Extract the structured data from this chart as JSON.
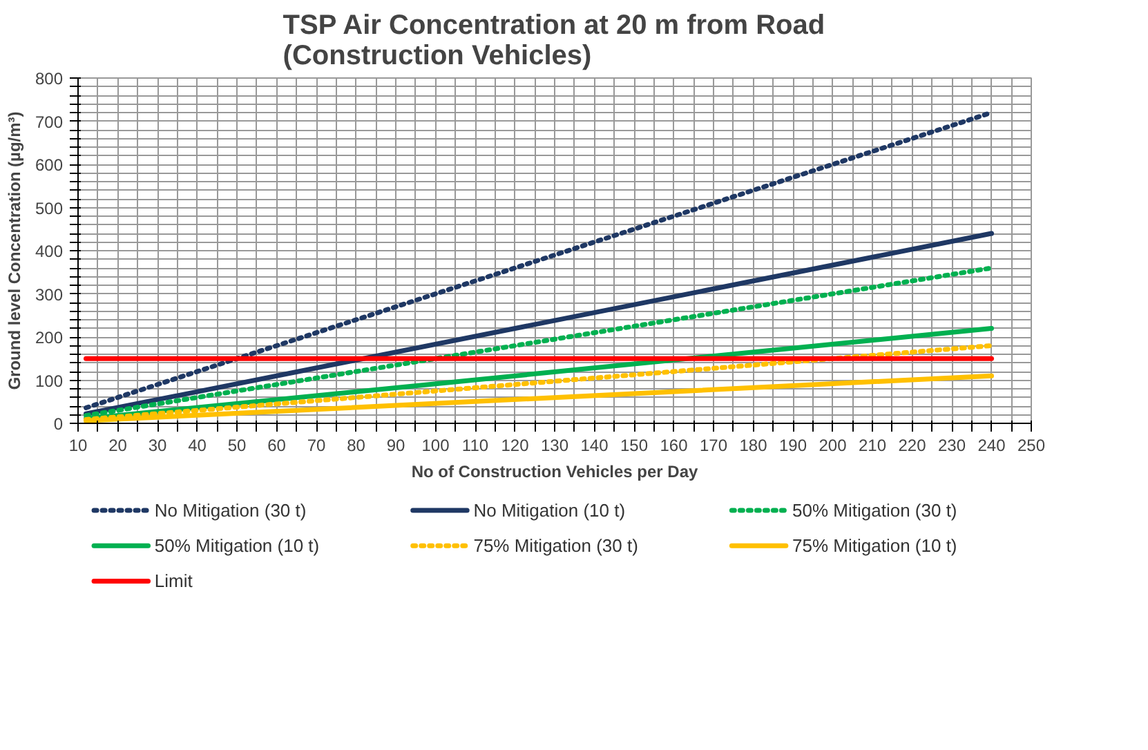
{
  "chart_data": {
    "type": "line",
    "title": "TSP Air Concentration at 20 m from Road\n(Construction Vehicles)",
    "xlabel": "No of Construction Vehicles per Day",
    "ylabel": "Ground level Concentration (µg/m³)",
    "x": [
      12,
      240
    ],
    "series": [
      {
        "name": "No Mitigation (30 t)",
        "color": "#1f3864",
        "line_style": "dotted",
        "values": [
          36,
          720
        ]
      },
      {
        "name": "No Mitigation (10 t)",
        "color": "#1f3864",
        "line_style": "solid",
        "values": [
          22,
          440
        ]
      },
      {
        "name": "50% Mitigation (30 t)",
        "color": "#00b050",
        "line_style": "dotted",
        "values": [
          18,
          360
        ]
      },
      {
        "name": "50% Mitigation (10 t)",
        "color": "#00b050",
        "line_style": "solid",
        "values": [
          11,
          220
        ]
      },
      {
        "name": "75% Mitigation (30 t)",
        "color": "#ffc000",
        "line_style": "dotted",
        "values": [
          9,
          180
        ]
      },
      {
        "name": "75% Mitigation (10 t)",
        "color": "#ffc000",
        "line_style": "solid",
        "values": [
          6,
          110
        ]
      },
      {
        "name": "Limit",
        "color": "#ff0000",
        "line_style": "solid",
        "values": [
          150,
          150
        ]
      }
    ],
    "xlim": [
      10,
      250
    ],
    "xticks": [
      10,
      {
        "value": 15,
        "label": null
      },
      20,
      {
        "value": 25,
        "label": null
      },
      30,
      {
        "value": 35,
        "label": null
      },
      40,
      {
        "value": 45,
        "label": null
      },
      50,
      {
        "value": 55,
        "label": null
      },
      60,
      {
        "value": 65,
        "label": null
      },
      70,
      {
        "value": 75,
        "label": null
      },
      80,
      {
        "value": 85,
        "label": null
      },
      90,
      {
        "value": 95,
        "label": null
      },
      100,
      {
        "value": 105,
        "label": null
      },
      110,
      {
        "value": 115,
        "label": null
      },
      120,
      {
        "value": 125,
        "label": null
      },
      130,
      {
        "value": 135,
        "label": null
      },
      140,
      {
        "value": 145,
        "label": null
      },
      150,
      {
        "value": 155,
        "label": null
      },
      160,
      {
        "value": 165,
        "label": null
      },
      170,
      {
        "value": 175,
        "label": null
      },
      180,
      {
        "value": 185,
        "label": null
      },
      190,
      {
        "value": 195,
        "label": null
      },
      200,
      {
        "value": 205,
        "label": null
      },
      210,
      {
        "value": 215,
        "label": null
      },
      220,
      {
        "value": 225,
        "label": null
      },
      230,
      {
        "value": 235,
        "label": null
      },
      240,
      {
        "value": 245,
        "label": null
      },
      250
    ],
    "ylim": [
      0,
      800
    ],
    "yticks": [
      0,
      {
        "value": 20,
        "label": null
      },
      {
        "value": 40,
        "label": null
      },
      {
        "value": 60,
        "label": null
      },
      {
        "value": 80,
        "label": null
      },
      100,
      {
        "value": 120,
        "label": null
      },
      {
        "value": 140,
        "label": null
      },
      {
        "value": 160,
        "label": null
      },
      {
        "value": 180,
        "label": null
      },
      200,
      {
        "value": 220,
        "label": null
      },
      {
        "value": 240,
        "label": null
      },
      {
        "value": 260,
        "label": null
      },
      {
        "value": 280,
        "label": null
      },
      300,
      {
        "value": 320,
        "label": null
      },
      {
        "value": 340,
        "label": null
      },
      {
        "value": 360,
        "label": null
      },
      {
        "value": 380,
        "label": null
      },
      400,
      {
        "value": 420,
        "label": null
      },
      {
        "value": 440,
        "label": null
      },
      {
        "value": 460,
        "label": null
      },
      {
        "value": 480,
        "label": null
      },
      500,
      {
        "value": 520,
        "label": null
      },
      {
        "value": 540,
        "label": null
      },
      {
        "value": 560,
        "label": null
      },
      {
        "value": 580,
        "label": null
      },
      600,
      {
        "value": 620,
        "label": null
      },
      {
        "value": 640,
        "label": null
      },
      {
        "value": 660,
        "label": null
      },
      {
        "value": 680,
        "label": null
      },
      700,
      {
        "value": 720,
        "label": null
      },
      {
        "value": 740,
        "label": null
      },
      {
        "value": 760,
        "label": null
      },
      {
        "value": 780,
        "label": null
      },
      800
    ],
    "grid": true,
    "legend": "bottom"
  }
}
